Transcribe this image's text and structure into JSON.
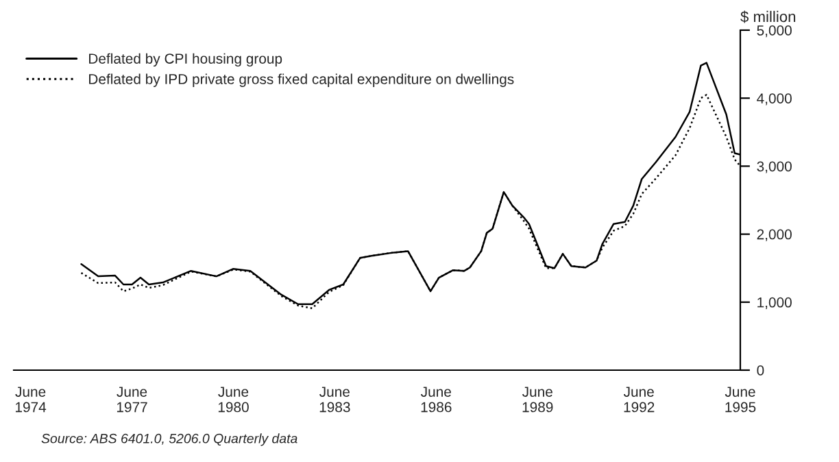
{
  "chart_data": {
    "type": "line",
    "x": [
      "1975-12",
      "1976-06",
      "1976-12",
      "1977-03",
      "1977-06",
      "1977-09",
      "1977-12",
      "1978-05",
      "1979-03",
      "1979-12",
      "1980-06",
      "1980-12",
      "1981-11",
      "1982-05",
      "1982-10",
      "1983-04",
      "1983-09",
      "1984-03",
      "1984-07",
      "1985-03",
      "1985-08",
      "1986-04",
      "1986-07",
      "1986-12",
      "1987-04",
      "1987-06",
      "1987-10",
      "1987-12",
      "1988-02",
      "1988-06",
      "1988-09",
      "1989-01",
      "1989-03",
      "1989-09",
      "1989-12",
      "1990-03",
      "1990-06",
      "1990-11",
      "1991-03",
      "1991-05",
      "1991-09",
      "1992-01",
      "1992-04",
      "1992-07",
      "1992-12",
      "1993-07",
      "1993-12",
      "1994-04",
      "1994-06",
      "1995-01",
      "1995-04",
      "1995-06"
    ],
    "series": [
      {
        "name": "Deflated by CPI housing group",
        "color": "#000000",
        "line_style": "solid",
        "values": [
          1560,
          1380,
          1390,
          1260,
          1260,
          1360,
          1260,
          1290,
          1460,
          1380,
          1490,
          1460,
          1110,
          970,
          970,
          1180,
          1260,
          1650,
          1680,
          1730,
          1750,
          1160,
          1360,
          1470,
          1460,
          1510,
          1750,
          2020,
          2080,
          2620,
          2420,
          2250,
          2150,
          1530,
          1500,
          1710,
          1530,
          1510,
          1610,
          1850,
          2150,
          2180,
          2420,
          2810,
          3060,
          3430,
          3800,
          4480,
          4520,
          3760,
          3190,
          3170
        ]
      },
      {
        "name": "Deflated by IPD private gross fixed capital expenditure on dwellings",
        "color": "#000000",
        "line_style": "dotted",
        "values": [
          1430,
          1280,
          1290,
          1160,
          1200,
          1260,
          1210,
          1250,
          1450,
          1380,
          1480,
          1450,
          1090,
          950,
          910,
          1150,
          1250,
          1650,
          1680,
          1730,
          1750,
          1160,
          1360,
          1470,
          1460,
          1510,
          1750,
          2020,
          2080,
          2620,
          2420,
          2200,
          2080,
          1500,
          1500,
          1710,
          1530,
          1510,
          1610,
          1800,
          2050,
          2120,
          2300,
          2590,
          2820,
          3160,
          3560,
          4000,
          4050,
          3430,
          3100,
          3000
        ]
      }
    ],
    "xlim": [
      "1973-12",
      "1995-06"
    ],
    "xticks": [
      {
        "value": "1974-06",
        "label": "June\n1974"
      },
      {
        "value": "1977-06",
        "label": "June\n1977"
      },
      {
        "value": "1980-06",
        "label": "June\n1980"
      },
      {
        "value": "1983-06",
        "label": "June\n1983"
      },
      {
        "value": "1986-06",
        "label": "June\n1986"
      },
      {
        "value": "1989-06",
        "label": "June\n1989"
      },
      {
        "value": "1992-06",
        "label": "June\n1992"
      },
      {
        "value": "1995-06",
        "label": "June\n1995"
      }
    ],
    "ylim": [
      0,
      5000
    ],
    "yticks": [
      0,
      {
        "value": 1000,
        "label": "1,000"
      },
      {
        "value": 2000,
        "label": "2,000"
      },
      {
        "value": 3000,
        "label": "3,000"
      },
      {
        "value": 4000,
        "label": "4,000"
      },
      {
        "value": 5000,
        "label": "5,000"
      }
    ],
    "ylabel": "$ million",
    "legend": "top left",
    "grid": false,
    "annotations": [
      "Source: ABS 6401.0, 5206.0 Quarterly data"
    ]
  }
}
